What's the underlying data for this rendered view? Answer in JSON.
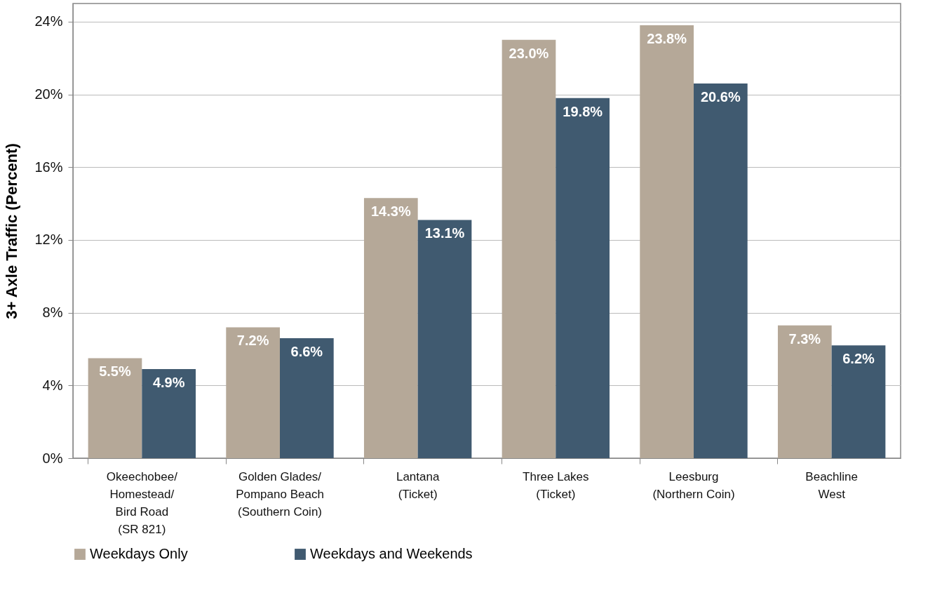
{
  "chart_data": {
    "type": "bar",
    "ylabel": "3+ Axle Traffic (Percent)",
    "categories": [
      "Okeechobee/\nHomestead/\nBird Road\n(SR 821)",
      "Golden Glades/\nPompano Beach\n(Southern Coin)",
      "Lantana\n(Ticket)",
      "Three Lakes\n(Ticket)",
      "Leesburg\n(Northern Coin)",
      "Beachline\nWest"
    ],
    "series": [
      {
        "name": "Weekdays Only",
        "color": "#b5a898",
        "values": [
          5.5,
          7.2,
          14.3,
          23.0,
          23.8,
          7.3
        ],
        "value_labels": [
          "5.5%",
          "7.2%",
          "14.3%",
          "23.0%",
          "23.8%",
          "7.3%"
        ]
      },
      {
        "name": "Weekdays and Weekends",
        "color": "#405a70",
        "values": [
          4.9,
          6.6,
          13.1,
          19.8,
          20.6,
          6.2
        ],
        "value_labels": [
          "4.9%",
          "6.6%",
          "13.1%",
          "19.8%",
          "20.6%",
          "6.2%"
        ]
      }
    ],
    "ylim": [
      0,
      25
    ],
    "yticks": [
      {
        "value": 0,
        "label": "0%"
      },
      {
        "value": 4,
        "label": "4%"
      },
      {
        "value": 8,
        "label": "8%"
      },
      {
        "value": 12,
        "label": "12%"
      },
      {
        "value": 16,
        "label": "16%"
      },
      {
        "value": 20,
        "label": "20%"
      },
      {
        "value": 24,
        "label": "24%"
      }
    ],
    "grid": "y",
    "legend": "bottom"
  }
}
